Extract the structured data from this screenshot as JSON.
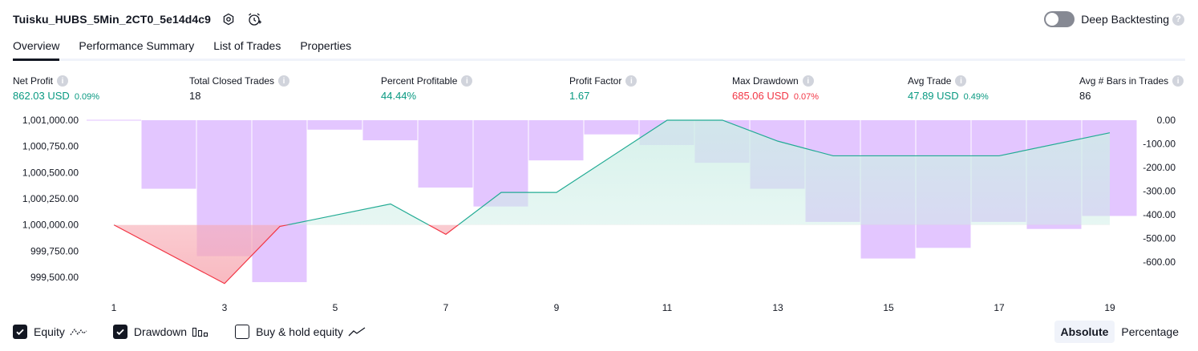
{
  "header": {
    "title": "Tuisku_HUBS_5Min_2CT0_5e14d4c9",
    "deep_backtesting_label": "Deep Backtesting",
    "deep_backtesting_on": false
  },
  "tabs": [
    {
      "label": "Overview",
      "active": true
    },
    {
      "label": "Performance Summary",
      "active": false
    },
    {
      "label": "List of Trades",
      "active": false
    },
    {
      "label": "Properties",
      "active": false
    }
  ],
  "metrics": {
    "net_profit": {
      "label": "Net Profit",
      "value": "862.03 USD",
      "sub": "0.09%"
    },
    "total_closed_trades": {
      "label": "Total Closed Trades",
      "value": "18"
    },
    "percent_profitable": {
      "label": "Percent Profitable",
      "value": "44.44%"
    },
    "profit_factor": {
      "label": "Profit Factor",
      "value": "1.67"
    },
    "max_drawdown": {
      "label": "Max Drawdown",
      "value": "685.06 USD",
      "sub": "0.07%"
    },
    "avg_trade": {
      "label": "Avg Trade",
      "value": "47.89 USD",
      "sub": "0.49%"
    },
    "avg_bars": {
      "label": "Avg # Bars in Trades",
      "value": "86"
    }
  },
  "colors": {
    "positive": "#089981",
    "negative": "#f23645",
    "drawdown": "#e1c1ff",
    "equity_line": "#22ab94",
    "equity_fill": "#cdeee6",
    "loss_fill": "#f7a9b2"
  },
  "chart_data": {
    "type": "line",
    "equity_baseline": 1000000,
    "left_axis": {
      "ticks": [
        "1,001,000.00",
        "1,000,750.00",
        "1,000,500.00",
        "1,000,250.00",
        "1,000,000.00",
        "999,750.00",
        "999,500.00"
      ],
      "range": [
        999400,
        1001000
      ]
    },
    "right_axis": {
      "ticks": [
        "0.00",
        "-100.00",
        "-200.00",
        "-300.00",
        "-400.00",
        "-500.00",
        "-600.00"
      ],
      "range": [
        -685,
        0
      ]
    },
    "x_ticks": [
      "1",
      "3",
      "5",
      "7",
      "9",
      "11",
      "13",
      "15",
      "17",
      "19"
    ],
    "x_range": [
      1,
      19
    ],
    "series": [
      {
        "name": "Equity",
        "x": [
          1,
          3,
          4,
          6,
          7,
          8,
          9,
          11,
          12,
          13,
          14,
          15,
          16,
          17,
          19
        ],
        "y": [
          1000000,
          999440,
          999985,
          1000200,
          999910,
          1000310,
          1000310,
          1001000,
          1001000,
          1000800,
          1000660,
          1000660,
          1000660,
          1000660,
          1000880
        ]
      },
      {
        "name": "Drawdown",
        "x": [
          1,
          2,
          3,
          4,
          5,
          6,
          7,
          8,
          9,
          10,
          11,
          12,
          13,
          14,
          15,
          16,
          17,
          18,
          19
        ],
        "y": [
          0,
          -290,
          -575,
          -685,
          -40,
          -85,
          -285,
          -365,
          -170,
          -60,
          -105,
          -180,
          -290,
          -430,
          -585,
          -540,
          -430,
          -460,
          -405
        ]
      }
    ],
    "grid": false
  },
  "legend": {
    "equity": {
      "label": "Equity",
      "checked": true
    },
    "drawdown": {
      "label": "Drawdown",
      "checked": true
    },
    "buy_hold": {
      "label": "Buy & hold equity",
      "checked": false
    }
  },
  "modes": [
    {
      "label": "Absolute",
      "active": true
    },
    {
      "label": "Percentage",
      "active": false
    }
  ]
}
